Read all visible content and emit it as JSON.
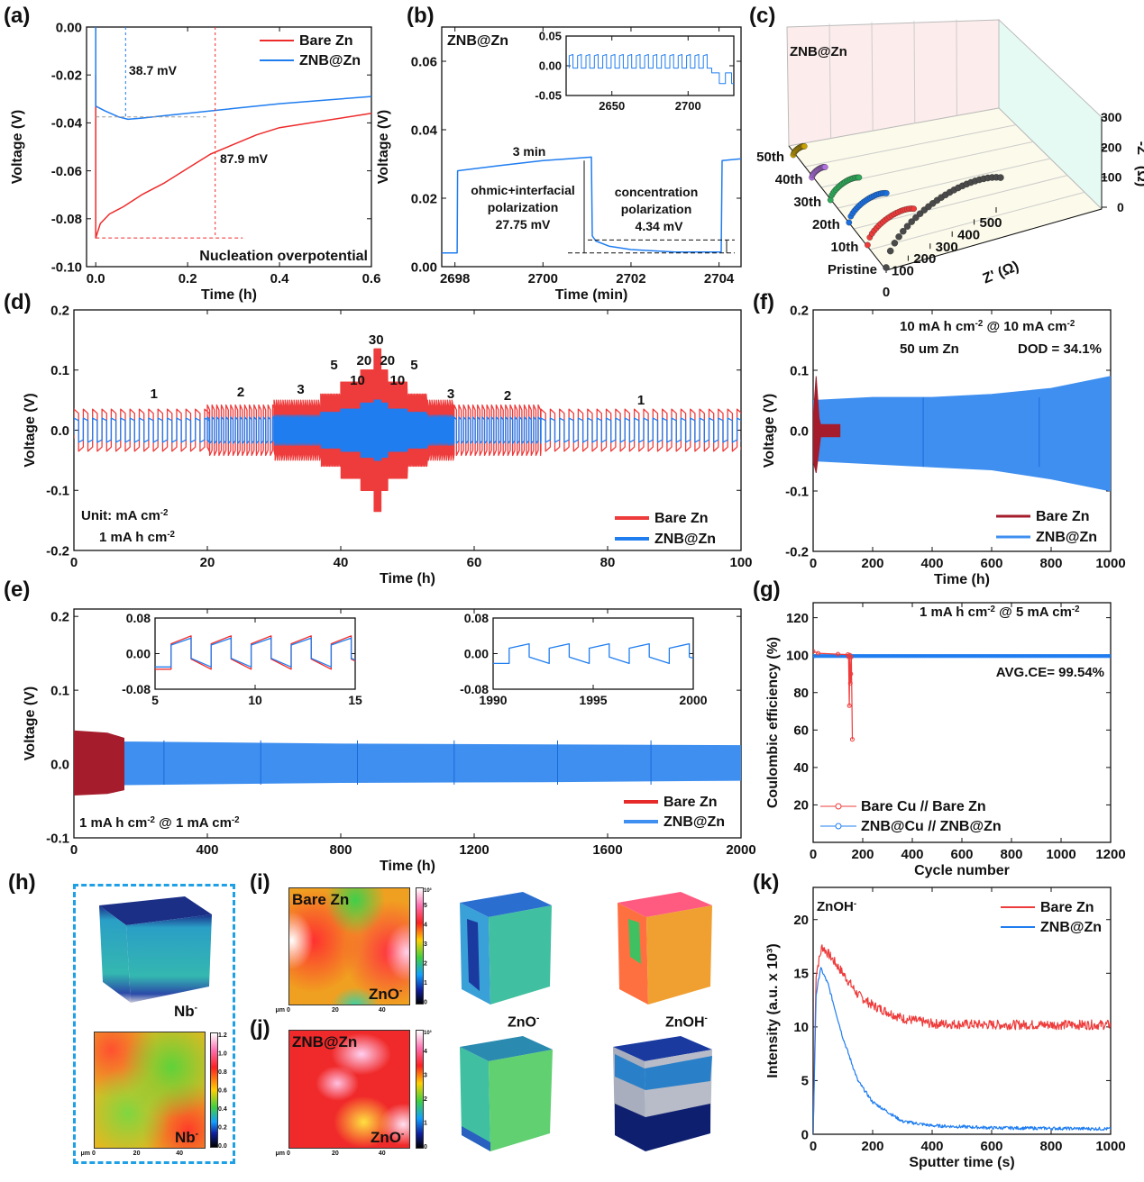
{
  "panel_labels": {
    "a": "(a)",
    "b": "(b)",
    "c": "(c)",
    "d": "(d)",
    "e": "(e)",
    "f": "(f)",
    "g": "(g)",
    "h": "(h)",
    "i": "(i)",
    "j": "(j)",
    "k": "(k)"
  },
  "colors": {
    "bare": "#ee2b2b",
    "znb": "#1f7df0",
    "bare_dark": "#a51c2c",
    "znb_light": "#3f8ff0",
    "h_box": "#1ea0e6"
  },
  "chart_data": [
    {
      "id": "a",
      "type": "line",
      "xlabel": "Time (h)",
      "ylabel": "Voltage (V)",
      "xlim": [
        -0.02,
        0.6
      ],
      "ylim": [
        -0.1,
        0.0
      ],
      "xticks": [
        "0.0",
        "0.2",
        "0.4",
        "0.6"
      ],
      "yticks": [
        "0.00",
        "-0.02",
        "-0.04",
        "-0.06",
        "-0.08",
        "-0.10"
      ],
      "legend_position": "top-right",
      "series": [
        {
          "name": "Bare Zn",
          "color": "#ee2b2b",
          "points": [
            [
              0,
              -0.02
            ],
            [
              0,
              -0.088
            ],
            [
              0.01,
              -0.082
            ],
            [
              0.03,
              -0.078
            ],
            [
              0.06,
              -0.075
            ],
            [
              0.1,
              -0.07
            ],
            [
              0.15,
              -0.065
            ],
            [
              0.2,
              -0.059
            ],
            [
              0.25,
              -0.053
            ],
            [
              0.3,
              -0.049
            ],
            [
              0.35,
              -0.045
            ],
            [
              0.4,
              -0.042
            ],
            [
              0.5,
              -0.039
            ],
            [
              0.6,
              -0.036
            ]
          ]
        },
        {
          "name": "ZNB@Zn",
          "color": "#1f7df0",
          "points": [
            [
              0,
              0
            ],
            [
              0,
              -0.033
            ],
            [
              0.02,
              -0.035
            ],
            [
              0.05,
              -0.0375
            ],
            [
              0.07,
              -0.0385
            ],
            [
              0.1,
              -0.038
            ],
            [
              0.15,
              -0.037
            ],
            [
              0.2,
              -0.036
            ],
            [
              0.3,
              -0.034
            ],
            [
              0.4,
              -0.032
            ],
            [
              0.5,
              -0.0305
            ],
            [
              0.6,
              -0.029
            ]
          ]
        }
      ],
      "annotations": {
        "znb_overpotential": "38.7 mV",
        "bare_overpotential": "87.9 mV",
        "caption": "Nucleation overpotential"
      }
    },
    {
      "id": "b",
      "type": "line",
      "xlabel": "Time (min)",
      "ylabel": "Voltage (V)",
      "xlim": [
        2697.7,
        2704.5
      ],
      "ylim": [
        0,
        0.07
      ],
      "xticks": [
        "2698",
        "2700",
        "2702",
        "2704"
      ],
      "yticks": [
        "0.00",
        "0.02",
        "0.04",
        "0.06"
      ],
      "series": [
        {
          "name": "ZNB@Zn",
          "color": "#1f7df0",
          "points": [
            [
              2697.7,
              0.004
            ],
            [
              2698.05,
              0.004
            ],
            [
              2698.06,
              0.028
            ],
            [
              2699,
              0.0295
            ],
            [
              2700,
              0.031
            ],
            [
              2701.1,
              0.032
            ],
            [
              2701.12,
              0.009
            ],
            [
              2701.2,
              0.0075
            ],
            [
              2701.5,
              0.006
            ],
            [
              2702,
              0.005
            ],
            [
              2703,
              0.0043
            ],
            [
              2704.05,
              0.0043
            ],
            [
              2704.07,
              0.031
            ],
            [
              2704.5,
              0.0315
            ]
          ]
        }
      ],
      "label": "ZNB@Zn",
      "annotations": {
        "duration": "3 min",
        "ohmic_1": "ohmic+interfacial",
        "ohmic_2": "polarization",
        "ohmic_value": "27.75 mV",
        "conc_1": "concentration",
        "conc_2": "polarization",
        "conc_value": "4.34 mV"
      },
      "inset": {
        "xlim": [
          2620,
          2730
        ],
        "ylim": [
          -0.05,
          0.05
        ],
        "xticks": [
          "2650",
          "2700"
        ],
        "yticks": [
          "0.05",
          "0.00",
          "-0.05"
        ],
        "period": 5.5,
        "high": 0.017,
        "low": -0.004,
        "until": 2712,
        "after_high": -0.012,
        "after_low": -0.03
      }
    },
    {
      "id": "c",
      "type": "scatter-3d",
      "label": "ZNB@Zn",
      "xlabel": "Z' (Ω)",
      "zlabel": "-Z'' (Ω)",
      "xticks": [
        "0",
        "100",
        "200",
        "300",
        "400",
        "500"
      ],
      "zticks": [
        "0",
        "100",
        "200",
        "300"
      ],
      "series": [
        {
          "name": "Pristine",
          "color": "#4a4a4a",
          "zre_max": 520
        },
        {
          "name": "10th",
          "color": "#ee3b3b",
          "zre_max": 210
        },
        {
          "name": "20th",
          "color": "#1a6fe0",
          "zre_max": 170
        },
        {
          "name": "30th",
          "color": "#2faa5a",
          "zre_max": 130
        },
        {
          "name": "40th",
          "color": "#b070e0",
          "zre_max": 60
        },
        {
          "name": "50th",
          "color": "#c8a000",
          "zre_max": 50
        }
      ]
    },
    {
      "id": "d",
      "type": "line",
      "xlabel": "Time (h)",
      "ylabel": "Voltage (V)",
      "xlim": [
        0,
        100
      ],
      "ylim": [
        -0.2,
        0.2
      ],
      "xticks": [
        "0",
        "20",
        "40",
        "60",
        "80",
        "100"
      ],
      "yticks": [
        "-0.2",
        "-0.1",
        "0.0",
        "0.1",
        "0.2"
      ],
      "capacity_mAh_cm2": 1,
      "segments": [
        {
          "rate": 1,
          "start": 0,
          "end": 20
        },
        {
          "rate": 2,
          "start": 20,
          "end": 30
        },
        {
          "rate": 3,
          "start": 30,
          "end": 37
        },
        {
          "rate": 5,
          "start": 37,
          "end": 40
        },
        {
          "rate": 10,
          "start": 40,
          "end": 43
        },
        {
          "rate": 20,
          "start": 43,
          "end": 45
        },
        {
          "rate": 30,
          "start": 45,
          "end": 46
        },
        {
          "rate": 20,
          "start": 46,
          "end": 47
        },
        {
          "rate": 10,
          "start": 47,
          "end": 50
        },
        {
          "rate": 5,
          "start": 50,
          "end": 53
        },
        {
          "rate": 3,
          "start": 53,
          "end": 57
        },
        {
          "rate": 2,
          "start": 57,
          "end": 70
        },
        {
          "rate": 1,
          "start": 70,
          "end": 100
        }
      ],
      "rate_labels": [
        "1",
        "2",
        "3",
        "5",
        "10",
        "20",
        "30",
        "20",
        "10",
        "5",
        "3",
        "2",
        "1"
      ],
      "series": [
        {
          "name": "Bare Zn",
          "color": "#ee3b3b",
          "overpotential_by_rate": {
            "1": 0.035,
            "2": 0.042,
            "3": 0.05,
            "5": 0.06,
            "10": 0.08,
            "20": 0.1,
            "30": 0.135
          }
        },
        {
          "name": "ZNB@Zn",
          "color": "#1f7df0",
          "overpotential_by_rate": {
            "1": 0.02,
            "2": 0.022,
            "3": 0.025,
            "5": 0.03,
            "10": 0.035,
            "20": 0.045,
            "30": 0.05
          }
        }
      ],
      "note": {
        "unit": "Unit:  mA cm",
        "unit_sup": "-2",
        "capacity": "1 mA h cm",
        "capacity_sup": "-2"
      }
    },
    {
      "id": "e",
      "type": "area",
      "xlabel": "Time (h)",
      "ylabel": "Voltage (V)",
      "xlim": [
        0,
        2000
      ],
      "ylim": [
        -0.1,
        0.21
      ],
      "xticks": [
        "0",
        "400",
        "800",
        "1200",
        "1600",
        "2000"
      ],
      "yticks": [
        "-0.1",
        "0.0",
        "0.1",
        "0.2"
      ],
      "series": [
        {
          "name": "ZNB@Zn",
          "color": "#3f8ff0",
          "envelope": [
            [
              0,
              0.035,
              -0.035
            ],
            [
              150,
              0.03,
              -0.028
            ],
            [
              800,
              0.027,
              -0.025
            ],
            [
              1400,
              0.026,
              -0.024
            ],
            [
              2000,
              0.025,
              -0.022
            ]
          ]
        },
        {
          "name": "Bare Zn",
          "color": "#a51c2c",
          "envelope": [
            [
              0,
              0.045,
              -0.042
            ],
            [
              100,
              0.042,
              -0.04
            ],
            [
              150,
              0.035,
              -0.035
            ]
          ]
        }
      ],
      "note": {
        "text": "1 mA h cm",
        "sup1": "-2",
        "mid": " @ 1 mA cm",
        "sup2": "-2"
      },
      "insets": [
        {
          "xlim": [
            5,
            15
          ],
          "ylim": [
            -0.08,
            0.08
          ],
          "xticks": [
            "5",
            "10",
            "15"
          ],
          "yticks": [
            "0.08",
            "0.00",
            "-0.08"
          ],
          "period": 2,
          "bare": [
            0.04,
            -0.035
          ],
          "znb": [
            0.035,
            -0.03
          ]
        },
        {
          "xlim": [
            1990,
            2000
          ],
          "ylim": [
            -0.08,
            0.08
          ],
          "xticks": [
            "1990",
            "1995",
            "2000"
          ],
          "yticks": [
            "0.08",
            "0.00",
            "-0.08"
          ],
          "period": 2,
          "znb": [
            0.022,
            -0.022
          ]
        }
      ]
    },
    {
      "id": "f",
      "type": "area",
      "xlabel": "Time (h)",
      "ylabel": "Voltage (V)",
      "xlim": [
        0,
        1000
      ],
      "ylim": [
        -0.2,
        0.2
      ],
      "xticks": [
        "0",
        "200",
        "400",
        "600",
        "800",
        "1000"
      ],
      "yticks": [
        "-0.2",
        "-0.1",
        "0.0",
        "0.1",
        "0.2"
      ],
      "series": [
        {
          "name": "Bare Zn",
          "color": "#a51c2c",
          "envelope": [
            [
              0,
              0.02,
              -0.05
            ],
            [
              10,
              0.09,
              -0.07
            ],
            [
              20,
              0.02,
              -0.03
            ],
            [
              25,
              0.01,
              -0.01
            ],
            [
              90,
              0.01,
              -0.01
            ]
          ]
        },
        {
          "name": "ZNB@Zn",
          "color": "#3f8ff0",
          "envelope": [
            [
              0,
              0.05,
              -0.05
            ],
            [
              200,
              0.055,
              -0.055
            ],
            [
              400,
              0.055,
              -0.06
            ],
            [
              600,
              0.06,
              -0.065
            ],
            [
              800,
              0.07,
              -0.08
            ],
            [
              1000,
              0.09,
              -0.1
            ]
          ]
        }
      ],
      "note": {
        "l1a": "10 mA h cm",
        "l1s": "-2",
        "l1b": " @ 10 mA cm",
        "l1s2": "-2",
        "l2a": "50 um Zn",
        "l2b": "DOD = 34.1%"
      }
    },
    {
      "id": "g",
      "type": "line",
      "xlabel": "Cycle number",
      "ylabel": "Coulombic efficiency (%)",
      "xlim": [
        0,
        1200
      ],
      "ylim": [
        0,
        128
      ],
      "xticks": [
        "0",
        "200",
        "400",
        "600",
        "800",
        "1000",
        "1200"
      ],
      "yticks": [
        "20",
        "40",
        "60",
        "80",
        "100",
        "120"
      ],
      "series": [
        {
          "name": "Bare Cu  //  Bare Zn",
          "color": "#ee3b3b",
          "points": [
            [
              0,
              102
            ],
            [
              20,
              101
            ],
            [
              100,
              100.5
            ],
            [
              140,
              100.3
            ],
            [
              143,
              99
            ],
            [
              146,
              73
            ],
            [
              148,
              100
            ],
            [
              150,
              85
            ],
            [
              152,
              90
            ],
            [
              154,
              99
            ],
            [
              158,
              55
            ]
          ]
        },
        {
          "name": "ZNB@Cu // ZNB@Zn",
          "color": "#1f7df0",
          "points": [
            [
              0,
              98.5
            ],
            [
              5,
              99.5
            ],
            [
              1200,
              99.5
            ]
          ]
        }
      ],
      "note": {
        "a": "1 mA h cm",
        "s1": "-2",
        "b": " @ 5 mA cm",
        "s2": "-2",
        "avg": "AVG.CE= 99.54%"
      }
    },
    {
      "id": "k",
      "type": "line",
      "xlabel": "Sputter time (s)",
      "ylabel": "Intensity (a.u. x 10³)",
      "xlim": [
        0,
        1000
      ],
      "ylim": [
        0,
        23
      ],
      "xticks": [
        "0",
        "200",
        "400",
        "600",
        "800",
        "1000"
      ],
      "yticks": [
        "0",
        "5",
        "10",
        "15",
        "20"
      ],
      "label": "ZnOH",
      "label_sup": "-",
      "series": [
        {
          "name": "Bare Zn",
          "color": "#ee3b3b",
          "noise": 0.45,
          "points": [
            [
              0,
              0
            ],
            [
              10,
              15
            ],
            [
              30,
              17.5
            ],
            [
              60,
              16.5
            ],
            [
              100,
              15
            ],
            [
              150,
              13
            ],
            [
              200,
              12
            ],
            [
              300,
              10.8
            ],
            [
              400,
              10.3
            ],
            [
              600,
              10.2
            ],
            [
              1000,
              10.2
            ]
          ]
        },
        {
          "name": "ZNB@Zn",
          "color": "#1f7df0",
          "noise": 0.15,
          "points": [
            [
              0,
              0
            ],
            [
              10,
              13
            ],
            [
              25,
              15.5
            ],
            [
              50,
              14
            ],
            [
              100,
              9
            ],
            [
              150,
              5
            ],
            [
              200,
              3
            ],
            [
              300,
              1.2
            ],
            [
              400,
              0.8
            ],
            [
              600,
              0.6
            ],
            [
              1000,
              0.5
            ]
          ]
        }
      ]
    }
  ],
  "images": {
    "h_cube_label": "Nb",
    "h_map_label": "Nb",
    "sup_minus": "-",
    "h_cbar_ticks": [
      "1.2",
      "1.0",
      "0.8",
      "0.6",
      "0.4",
      "0.2",
      "0.0"
    ],
    "i_title": "Bare Zn",
    "i_species": "ZnO",
    "j_title": "ZNB@Zn",
    "j_species": "ZnO",
    "cube_caption_1": "ZnO",
    "cube_caption_2": "ZnOH",
    "map_axis_ticks": [
      "0",
      "20",
      "40"
    ],
    "map_unit": "μm",
    "cbar_exp": "10³",
    "i_cbar_ticks": [
      "5",
      "4",
      "3",
      "2",
      "1",
      "0"
    ],
    "j_cbar_ticks": [
      "4",
      "3",
      "2",
      "1",
      "0"
    ]
  }
}
